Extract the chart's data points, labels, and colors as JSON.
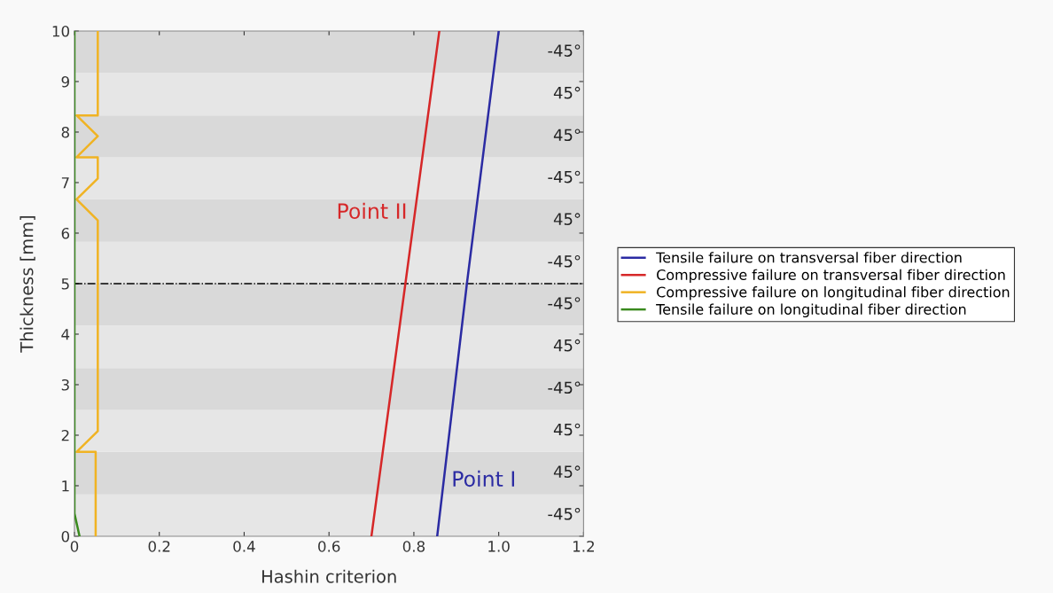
{
  "chart_data": {
    "type": "line",
    "xlabel": "Hashin criterion",
    "ylabel": "Thickness [mm]",
    "xlim": [
      0,
      1.2
    ],
    "xticks": [
      {
        "value": 0,
        "label": "0"
      },
      0.2,
      0.4,
      0.6,
      0.8,
      {
        "value": 1,
        "label": "1.0"
      },
      1.2
    ],
    "ylim": [
      0,
      10
    ],
    "yticks": [
      0,
      1,
      2,
      3,
      4,
      5,
      6,
      7,
      8,
      9,
      10
    ],
    "legend": "right",
    "grid": false,
    "marker": "none",
    "line_style": "solid",
    "series": [
      {
        "name": "Tensile failure on transversal fiber direction",
        "color": "#2b2ba3",
        "x": [
          0.855,
          0.925,
          1.0
        ],
        "values": [
          0,
          5,
          10
        ]
      },
      {
        "name": "Compressive failure on transversal fiber direction",
        "color": "#d62728",
        "x": [
          0.7,
          0.78,
          0.86
        ],
        "values": [
          0,
          5,
          10
        ]
      },
      {
        "name": "Compressive failure on longitudinal fiber direction",
        "color": "#f0b323",
        "x": [
          0.05,
          0.05,
          0.005,
          0.055,
          0.055,
          0.005,
          0.055,
          0.055,
          0.005,
          0.055,
          0.005,
          0.055,
          0.055
        ],
        "values": [
          0,
          1.67,
          1.67,
          2.08,
          6.25,
          6.67,
          7.08,
          7.5,
          7.5,
          7.92,
          8.33,
          8.33,
          10
        ]
      },
      {
        "name": "Tensile failure on longitudinal fiber direction",
        "color": "#3a8a1e",
        "x": [
          0.012,
          0,
          0
        ],
        "values": [
          0,
          0.45,
          10
        ]
      }
    ],
    "ref_lines": [
      {
        "axis": "y",
        "value": 5,
        "color": "#000000",
        "line_style": "dashdot"
      }
    ],
    "bands": [
      {
        "axis": "y",
        "from": 0,
        "to": 0.83,
        "label": "-45°",
        "color": "#e6e6e6"
      },
      {
        "axis": "y",
        "from": 0.83,
        "to": 1.67,
        "label": "45°",
        "color": "#d9d9d9"
      },
      {
        "axis": "y",
        "from": 1.67,
        "to": 2.5,
        "label": "45°",
        "color": "#e6e6e6"
      },
      {
        "axis": "y",
        "from": 2.5,
        "to": 3.33,
        "label": "-45°",
        "color": "#d9d9d9"
      },
      {
        "axis": "y",
        "from": 3.33,
        "to": 4.17,
        "label": "45°",
        "color": "#e6e6e6"
      },
      {
        "axis": "y",
        "from": 4.17,
        "to": 5,
        "label": "-45°",
        "color": "#d9d9d9"
      },
      {
        "axis": "y",
        "from": 5,
        "to": 5.83,
        "label": "-45°",
        "color": "#e6e6e6"
      },
      {
        "axis": "y",
        "from": 5.83,
        "to": 6.67,
        "label": "45°",
        "color": "#d9d9d9"
      },
      {
        "axis": "y",
        "from": 6.67,
        "to": 7.5,
        "label": "-45°",
        "color": "#e6e6e6"
      },
      {
        "axis": "y",
        "from": 7.5,
        "to": 8.33,
        "label": "45°",
        "color": "#d9d9d9"
      },
      {
        "axis": "y",
        "from": 8.33,
        "to": 9.17,
        "label": "45°",
        "color": "#e6e6e6"
      },
      {
        "axis": "y",
        "from": 9.17,
        "to": 10,
        "label": "-45°",
        "color": "#d9d9d9"
      }
    ],
    "annotations": [
      {
        "text": "Point I",
        "x": 0.871,
        "y": 1.1
      },
      {
        "text": "Point II",
        "x": 0.802,
        "y": 6.4
      }
    ]
  }
}
